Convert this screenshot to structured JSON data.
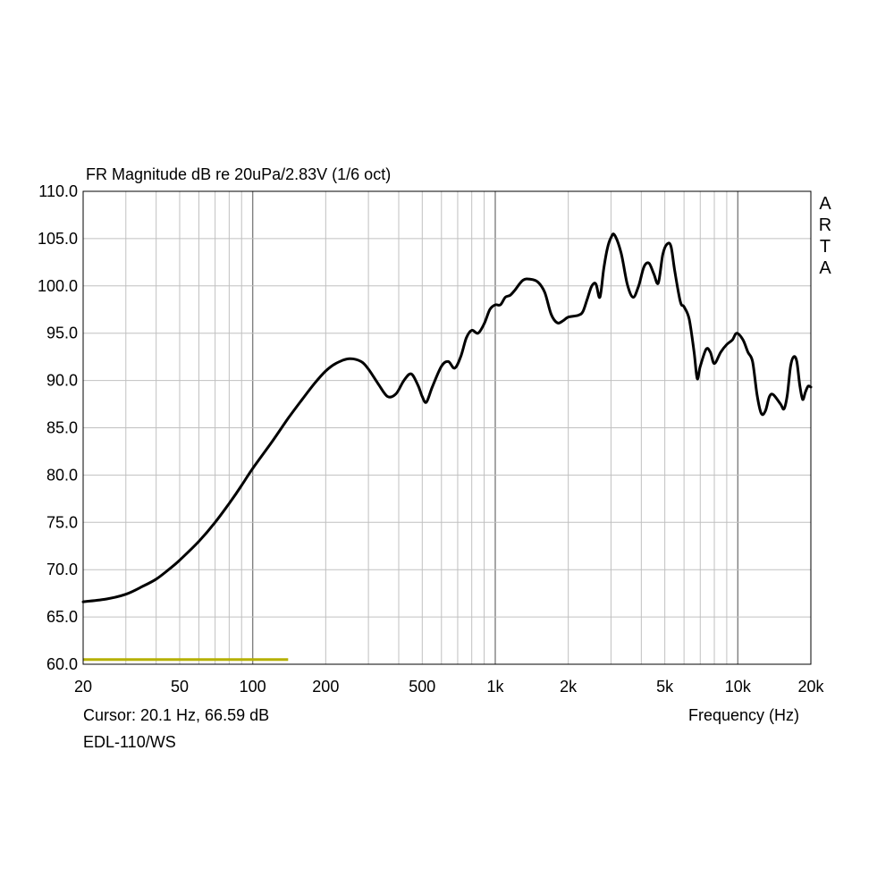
{
  "chart_data": {
    "type": "line",
    "title": "FR Magnitude dB re 20uPa/2.83V (1/6 oct)",
    "xlabel": "Frequency (Hz)",
    "ylabel": "",
    "xscale": "log",
    "xlim": [
      20,
      20000
    ],
    "ylim": [
      60,
      110
    ],
    "grid": true,
    "x_ticks": [
      {
        "value": 20,
        "label": "20"
      },
      {
        "value": 50,
        "label": "50"
      },
      {
        "value": 100,
        "label": "100"
      },
      {
        "value": 200,
        "label": "200"
      },
      {
        "value": 500,
        "label": "500"
      },
      {
        "value": 1000,
        "label": "1k"
      },
      {
        "value": 2000,
        "label": "2k"
      },
      {
        "value": 5000,
        "label": "5k"
      },
      {
        "value": 10000,
        "label": "10k"
      },
      {
        "value": 20000,
        "label": "20k"
      }
    ],
    "y_ticks": [
      {
        "value": 110,
        "label": "110.0"
      },
      {
        "value": 105,
        "label": "105.0"
      },
      {
        "value": 100,
        "label": "100.0"
      },
      {
        "value": 95,
        "label": "95.0"
      },
      {
        "value": 90,
        "label": "90.0"
      },
      {
        "value": 85,
        "label": "85.0"
      },
      {
        "value": 80,
        "label": "80.0"
      },
      {
        "value": 75,
        "label": "75.0"
      },
      {
        "value": 70,
        "label": "70.0"
      },
      {
        "value": 65,
        "label": "65.0"
      },
      {
        "value": 60,
        "label": "60.0"
      }
    ],
    "series": [
      {
        "color": "#000000",
        "points": [
          [
            20,
            66.6
          ],
          [
            25,
            66.9
          ],
          [
            30,
            67.4
          ],
          [
            35,
            68.2
          ],
          [
            40,
            69.0
          ],
          [
            45,
            70.0
          ],
          [
            50,
            71.0
          ],
          [
            60,
            73.0
          ],
          [
            70,
            75.0
          ],
          [
            80,
            77.0
          ],
          [
            90,
            78.9
          ],
          [
            100,
            80.7
          ],
          [
            120,
            83.5
          ],
          [
            140,
            86.0
          ],
          [
            160,
            88.0
          ],
          [
            180,
            89.7
          ],
          [
            200,
            91.0
          ],
          [
            220,
            91.8
          ],
          [
            250,
            92.3
          ],
          [
            280,
            92.0
          ],
          [
            300,
            91.2
          ],
          [
            330,
            89.6
          ],
          [
            360,
            88.3
          ],
          [
            390,
            88.6
          ],
          [
            420,
            90.0
          ],
          [
            450,
            90.7
          ],
          [
            480,
            89.5
          ],
          [
            500,
            88.3
          ],
          [
            520,
            87.7
          ],
          [
            550,
            89.3
          ],
          [
            600,
            91.5
          ],
          [
            640,
            92.0
          ],
          [
            680,
            91.3
          ],
          [
            720,
            92.5
          ],
          [
            760,
            94.5
          ],
          [
            800,
            95.3
          ],
          [
            850,
            95.0
          ],
          [
            900,
            96.0
          ],
          [
            950,
            97.5
          ],
          [
            1000,
            98.0
          ],
          [
            1050,
            98.0
          ],
          [
            1100,
            98.8
          ],
          [
            1150,
            99.0
          ],
          [
            1200,
            99.5
          ],
          [
            1300,
            100.6
          ],
          [
            1400,
            100.7
          ],
          [
            1500,
            100.4
          ],
          [
            1600,
            99.3
          ],
          [
            1700,
            97.0
          ],
          [
            1800,
            96.1
          ],
          [
            1900,
            96.3
          ],
          [
            2000,
            96.7
          ],
          [
            2200,
            96.9
          ],
          [
            2300,
            97.3
          ],
          [
            2400,
            98.7
          ],
          [
            2500,
            100.0
          ],
          [
            2600,
            100.2
          ],
          [
            2700,
            98.8
          ],
          [
            2800,
            101.8
          ],
          [
            2900,
            104.0
          ],
          [
            3000,
            105.1
          ],
          [
            3100,
            105.4
          ],
          [
            3300,
            103.5
          ],
          [
            3500,
            100.2
          ],
          [
            3700,
            98.8
          ],
          [
            3900,
            100.0
          ],
          [
            4100,
            102.0
          ],
          [
            4300,
            102.4
          ],
          [
            4500,
            101.3
          ],
          [
            4700,
            100.3
          ],
          [
            4900,
            103.3
          ],
          [
            5100,
            104.4
          ],
          [
            5300,
            104.2
          ],
          [
            5500,
            101.5
          ],
          [
            5800,
            98.3
          ],
          [
            6000,
            97.8
          ],
          [
            6300,
            96.5
          ],
          [
            6600,
            93.0
          ],
          [
            6800,
            90.2
          ],
          [
            7000,
            91.5
          ],
          [
            7400,
            93.3
          ],
          [
            7700,
            93.0
          ],
          [
            8000,
            91.8
          ],
          [
            8500,
            93.0
          ],
          [
            9000,
            93.8
          ],
          [
            9500,
            94.3
          ],
          [
            9900,
            95.0
          ],
          [
            10500,
            94.3
          ],
          [
            11000,
            93.0
          ],
          [
            11500,
            92.0
          ],
          [
            12000,
            88.5
          ],
          [
            12500,
            86.5
          ],
          [
            13000,
            86.8
          ],
          [
            13500,
            88.3
          ],
          [
            14000,
            88.5
          ],
          [
            15000,
            87.5
          ],
          [
            15500,
            87.0
          ],
          [
            16000,
            88.5
          ],
          [
            16500,
            91.5
          ],
          [
            17000,
            92.5
          ],
          [
            17500,
            92.0
          ],
          [
            18000,
            89.5
          ],
          [
            18500,
            88.0
          ],
          [
            19000,
            88.8
          ],
          [
            19500,
            89.4
          ],
          [
            20000,
            89.3
          ]
        ]
      }
    ],
    "marker_line": {
      "color": "#b5b000",
      "x": [
        20,
        140
      ],
      "y": 60.5
    }
  },
  "cursor_readout": "Cursor: 20.1 Hz, 66.59 dB",
  "device_name": "EDL-110/WS",
  "brand_letters": [
    "A",
    "R",
    "T",
    "A"
  ],
  "colors": {
    "grid": "#c0c0c0",
    "frame": "#000000",
    "trace": "#000000",
    "marker": "#b5b000"
  }
}
